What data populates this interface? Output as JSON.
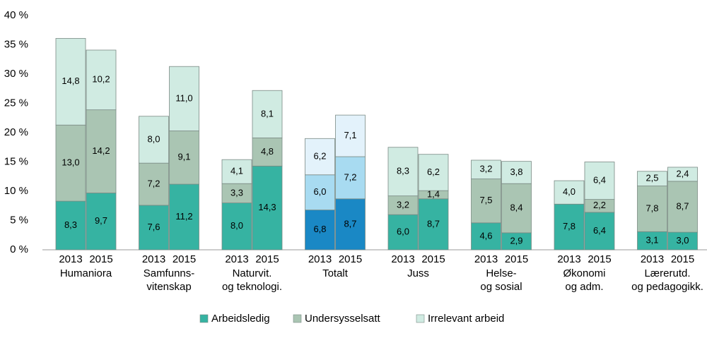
{
  "chart_data": {
    "type": "stacked_bar",
    "categories": [
      "2013",
      "2015",
      "2013",
      "2015",
      "2013",
      "2015",
      "2013",
      "2015",
      "2013",
      "2015",
      "2013",
      "2015",
      "2013",
      "2015",
      "2013",
      "2015"
    ],
    "groups": [
      [
        "Humaniora"
      ],
      [
        "Samfunns-",
        "vitenskap"
      ],
      [
        "Naturvit.",
        "og teknologi."
      ],
      [
        "Totalt"
      ],
      [
        "Juss"
      ],
      [
        "Helse-",
        "og sosial"
      ],
      [
        "Økonomi",
        "og adm."
      ],
      [
        "Lærerutd.",
        "og pedagogikk."
      ]
    ],
    "series": [
      {
        "name": "Arbeidsledig",
        "color": "#36b3a2",
        "values": [
          8.3,
          9.7,
          7.6,
          11.2,
          8.0,
          14.3,
          6.8,
          8.7,
          6.0,
          8.7,
          4.6,
          2.9,
          7.8,
          6.4,
          3.1,
          3.0
        ],
        "value_labels": [
          "8,3",
          "9,7",
          "7,6",
          "11,2",
          "8,0",
          "14,3",
          "6,8",
          "8,7",
          "6,0",
          "8,7",
          "4,6",
          "2,9",
          "7,8",
          "6,4",
          "3,1",
          "3,0"
        ]
      },
      {
        "name": "Undersysselsatt",
        "color": "#aac5b3",
        "values": [
          13.0,
          14.2,
          7.2,
          9.1,
          3.3,
          4.8,
          6.0,
          7.2,
          3.2,
          1.4,
          7.5,
          8.4,
          null,
          2.2,
          7.8,
          8.7
        ],
        "value_labels": [
          "13,0",
          "14,2",
          "7,2",
          "9,1",
          "3,3",
          "4,8",
          "6,0",
          "7,2",
          "3,2",
          "1,4",
          "7,5",
          "8,4",
          null,
          "2,2",
          "7,8",
          "8,7"
        ]
      },
      {
        "name": "Irrelevant arbeid",
        "color": "#d0ebe2",
        "values": [
          14.8,
          10.2,
          8.0,
          11.0,
          4.1,
          8.1,
          6.2,
          7.1,
          8.3,
          6.2,
          3.2,
          3.8,
          4.0,
          6.4,
          2.5,
          2.4
        ],
        "value_labels": [
          "14,8",
          "10,2",
          "8,0",
          "11,0",
          "4,1",
          "8,1",
          "6,2",
          "7,1",
          "8,3",
          "6,2",
          "3,2",
          "3,8",
          "4,0",
          "6,4",
          "2,5",
          "2,4"
        ]
      }
    ],
    "highlight": {
      "group": 3,
      "colors": [
        "#1a88c5",
        "#a8dbf1",
        "#e3f2fb"
      ],
      "text_color": "#2a9bd0"
    },
    "ylim": [
      0,
      40
    ],
    "yticks": [
      {
        "value": 0,
        "label": "0 %"
      },
      {
        "value": 5,
        "label": "5 %"
      },
      {
        "value": 10,
        "label": "10 %"
      },
      {
        "value": 15,
        "label": "15 %"
      },
      {
        "value": 20,
        "label": "20 %"
      },
      {
        "value": 25,
        "label": "25 %"
      },
      {
        "value": 30,
        "label": "30 %"
      },
      {
        "value": 35,
        "label": "35 %"
      },
      {
        "value": 40,
        "label": "40 %"
      }
    ],
    "legend": "bottom"
  }
}
